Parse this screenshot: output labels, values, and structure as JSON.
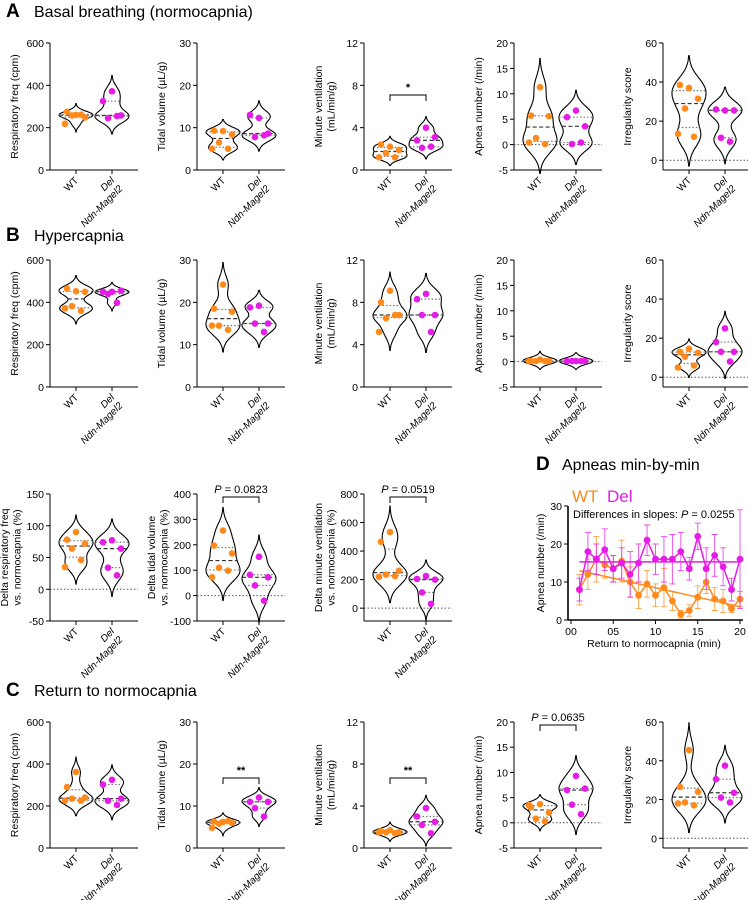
{
  "sections": [
    {
      "letter": "A",
      "title": "Basal breathing (normocapnia)"
    },
    {
      "letter": "B",
      "title": "Hypercapnia"
    },
    {
      "letter": "C",
      "title": "Return to normocapnia"
    },
    {
      "letter": "D",
      "title": "Apneas min-by-min"
    }
  ],
  "colors": {
    "WT": "#ff8a1c",
    "Del": "#e51ce5",
    "axis": "#000000"
  },
  "group_labels": [
    {
      "line1": "WT"
    },
    {
      "line1": "Del",
      "line2": "Ndn-Magel2"
    }
  ],
  "chart_data": [
    {
      "type": "violin",
      "section": "A",
      "ylabel": [
        "Respiratory freq (cpm)"
      ],
      "ylim": [
        0,
        600
      ],
      "yticks": [
        "0",
        "200",
        "400",
        "600"
      ],
      "series": [
        {
          "name": "WT",
          "values": [
            260,
            275,
            248,
            258,
            262,
            218
          ]
        },
        {
          "name": "Del",
          "values": [
            372,
            325,
            258,
            245,
            255
          ]
        }
      ]
    },
    {
      "type": "violin",
      "section": "A",
      "ylabel": [
        "Tidal volume (µL/g)"
      ],
      "ylim": [
        0,
        30
      ],
      "yticks": [
        "0",
        "10",
        "20",
        "30"
      ],
      "series": [
        {
          "name": "WT",
          "values": [
            9.2,
            9.3,
            8.4,
            6.5,
            5,
            5
          ]
        },
        {
          "name": "Del",
          "values": [
            12.3,
            13,
            8.6,
            7.8,
            8.2
          ]
        }
      ]
    },
    {
      "type": "violin",
      "section": "A",
      "ylabel": [
        "Minute ventilation",
        "(mL/min/g)"
      ],
      "ylim": [
        0,
        12
      ],
      "yticks": [
        "0",
        "4",
        "8",
        "12"
      ],
      "annotation": "*",
      "series": [
        {
          "name": "WT",
          "values": [
            2.2,
            2.4,
            1.9,
            1.6,
            1.2,
            1.2
          ]
        },
        {
          "name": "Del",
          "values": [
            4.0,
            2.8,
            3.1,
            2.1,
            2.2
          ]
        }
      ]
    },
    {
      "type": "violin",
      "section": "A",
      "ylabel": [
        "Apnea number (/min)"
      ],
      "ylim": [
        -5,
        20
      ],
      "yticks": [
        "-5",
        "0",
        "5",
        "10",
        "15",
        "20"
      ],
      "series": [
        {
          "name": "WT",
          "values": [
            11.3,
            5.7,
            5.6,
            1.3,
            0.1,
            0.4
          ]
        },
        {
          "name": "Del",
          "values": [
            6.7,
            5.4,
            3.6,
            0.1,
            0.4
          ]
        }
      ]
    },
    {
      "type": "violin",
      "section": "A",
      "ylabel": [
        "Irregularity score"
      ],
      "ylim": [
        -5,
        60
      ],
      "yticks": [
        "0",
        "20",
        "40",
        "60"
      ],
      "series": [
        {
          "name": "WT",
          "values": [
            37,
            38.5,
            31.5,
            26.5,
            12,
            13.5
          ]
        },
        {
          "name": "Del",
          "values": [
            25.5,
            26,
            25.5,
            11.5,
            9.5
          ]
        }
      ]
    },
    {
      "type": "violin",
      "section": "B",
      "ylabel": [
        "Respiratory freq (cpm)"
      ],
      "ylim": [
        0,
        600
      ],
      "yticks": [
        "0",
        "200",
        "400",
        "600"
      ],
      "series": [
        {
          "name": "WT",
          "values": [
            452,
            465,
            450,
            382,
            360,
            372
          ]
        },
        {
          "name": "Del",
          "values": [
            450,
            450,
            455,
            440,
            398
          ]
        }
      ]
    },
    {
      "type": "violin",
      "section": "B",
      "ylabel": [
        "Tidal volume (µL/g)"
      ],
      "ylim": [
        0,
        30
      ],
      "yticks": [
        "0",
        "10",
        "20",
        "30"
      ],
      "series": [
        {
          "name": "WT",
          "values": [
            24.2,
            18.5,
            17.8,
            14.5,
            13.5,
            14.5
          ]
        },
        {
          "name": "Del",
          "values": [
            19.2,
            18.8,
            15,
            15,
            13
          ]
        }
      ]
    },
    {
      "type": "violin",
      "section": "B",
      "ylabel": [
        "Minute ventilation",
        "(mL/min/g)"
      ],
      "ylim": [
        0,
        12
      ],
      "yticks": [
        "0",
        "4",
        "8",
        "12"
      ],
      "series": [
        {
          "name": "WT",
          "values": [
            9.1,
            8.0,
            6.8,
            6.5,
            6.8,
            5.2
          ]
        },
        {
          "name": "Del",
          "values": [
            8.8,
            8.3,
            6.8,
            6.8,
            5.2
          ]
        }
      ]
    },
    {
      "type": "violin",
      "section": "B",
      "ylabel": [
        "Apnea number (/min)"
      ],
      "ylim": [
        -5,
        20
      ],
      "yticks": [
        "-5",
        "0",
        "5",
        "10",
        "15",
        "20"
      ],
      "series": [
        {
          "name": "WT",
          "values": [
            0.4,
            0.1,
            0.1,
            0.1,
            0.1,
            0.1
          ]
        },
        {
          "name": "Del",
          "values": [
            0.1,
            0.1,
            0.1,
            0.1,
            0.1
          ]
        }
      ]
    },
    {
      "type": "violin",
      "section": "B",
      "ylabel": [
        "Irregularity score"
      ],
      "ylim": [
        -5,
        60
      ],
      "yticks": [
        "0",
        "20",
        "40",
        "60"
      ],
      "series": [
        {
          "name": "WT",
          "values": [
            14.5,
            13,
            12.5,
            10.5,
            6,
            5
          ]
        },
        {
          "name": "Del",
          "values": [
            25,
            18,
            13,
            13,
            8
          ]
        }
      ]
    },
    {
      "type": "violin",
      "section": "B",
      "ylabel": [
        "Delta respiratory freq",
        "vs. normocapnia (%)"
      ],
      "ylim": [
        -50,
        150
      ],
      "yticks": [
        "-50",
        "0",
        "50",
        "100",
        "150"
      ],
      "series": [
        {
          "name": "WT",
          "values": [
            90,
            78,
            72,
            64,
            46,
            35
          ]
        },
        {
          "name": "Del",
          "values": [
            77,
            74,
            64,
            34,
            22
          ]
        }
      ]
    },
    {
      "type": "violin",
      "section": "B",
      "ylabel": [
        "Delta tidal volume",
        "vs. normocapnia (%)"
      ],
      "ylim": [
        -100,
        400
      ],
      "yticks": [
        "-100",
        "0",
        "100",
        "200",
        "300",
        "400"
      ],
      "annotation": "P = 0.0823",
      "series": [
        {
          "name": "WT",
          "values": [
            256,
            197,
            166,
            110,
            98,
            72
          ]
        },
        {
          "name": "Del",
          "values": [
            153,
            82,
            72,
            40,
            -20
          ]
        }
      ]
    },
    {
      "type": "violin",
      "section": "B",
      "ylabel": [
        "Delta minute ventilation",
        "vs. normocapnia (%)"
      ],
      "ylim": [
        -90,
        800
      ],
      "yticks": [
        "0",
        "200",
        "400",
        "600",
        "800"
      ],
      "annotation": "P = 0.0519",
      "series": [
        {
          "name": "WT",
          "values": [
            533,
            465,
            262,
            235,
            225,
            220
          ]
        },
        {
          "name": "Del",
          "values": [
            225,
            205,
            200,
            110,
            30
          ]
        }
      ]
    },
    {
      "type": "violin",
      "section": "C",
      "ylabel": [
        "Respiratory freq (cpm)"
      ],
      "ylim": [
        0,
        600
      ],
      "yticks": [
        "0",
        "200",
        "400",
        "600"
      ],
      "series": [
        {
          "name": "WT",
          "values": [
            362,
            290,
            240,
            235,
            225,
            225
          ]
        },
        {
          "name": "Del",
          "values": [
            325,
            302,
            235,
            225,
            205
          ]
        }
      ]
    },
    {
      "type": "violin",
      "section": "C",
      "ylabel": [
        "Tidal volume (µL/g)"
      ],
      "ylim": [
        0,
        30
      ],
      "yticks": [
        "0",
        "10",
        "20",
        "30"
      ],
      "annotation": "**",
      "series": [
        {
          "name": "WT",
          "values": [
            6.2,
            6.3,
            6.0,
            5.8,
            6.4,
            4.8
          ]
        },
        {
          "name": "Del",
          "values": [
            12,
            11,
            11,
            9.5,
            7.5
          ]
        }
      ]
    },
    {
      "type": "violin",
      "section": "C",
      "ylabel": [
        "Minute ventilation",
        "(mL/min/g)"
      ],
      "ylim": [
        0,
        12
      ],
      "yticks": [
        "0",
        "4",
        "8",
        "12"
      ],
      "annotation": "**",
      "series": [
        {
          "name": "WT",
          "values": [
            1.7,
            1.6,
            1.5,
            1.5,
            1.4,
            1.5
          ]
        },
        {
          "name": "Del",
          "values": [
            3.8,
            3.0,
            2.5,
            2.2,
            1.4
          ]
        }
      ]
    },
    {
      "type": "violin",
      "section": "C",
      "ylabel": [
        "Apnea number (/min)"
      ],
      "ylim": [
        -5,
        20
      ],
      "yticks": [
        "-5",
        "0",
        "5",
        "10",
        "15",
        "20"
      ],
      "annotation": "P = 0.0635",
      "series": [
        {
          "name": "WT",
          "values": [
            3.7,
            3.1,
            2,
            0.8,
            0.3,
            3.5
          ]
        },
        {
          "name": "Del",
          "values": [
            9.3,
            6.5,
            6.8,
            3.6,
            1.7
          ]
        }
      ]
    },
    {
      "type": "violin",
      "section": "C",
      "ylabel": [
        "Irregularity score"
      ],
      "ylim": [
        -5,
        60
      ],
      "yticks": [
        "0",
        "20",
        "40",
        "60"
      ],
      "series": [
        {
          "name": "WT",
          "values": [
            45.5,
            26.5,
            24,
            18.5,
            17,
            18
          ]
        },
        {
          "name": "Del",
          "values": [
            37.5,
            30.5,
            23.5,
            21,
            18.5
          ]
        }
      ]
    },
    {
      "type": "line",
      "section": "D",
      "xlabel": "Return to normocapnia (min)",
      "ylabel": "Apnea number (/min)",
      "xlim": [
        0,
        20
      ],
      "ylim": [
        0,
        30
      ],
      "xticks": [
        "00",
        "05",
        "10",
        "15",
        "20"
      ],
      "yticks": [
        "0",
        "10",
        "20",
        "30"
      ],
      "legend": [
        "WT",
        "Del"
      ],
      "legend_position": "top-left",
      "annotation": "Differences in slopes: P = 0.0255",
      "x": [
        1,
        2,
        3,
        4,
        5,
        6,
        7,
        8,
        9,
        10,
        11,
        12,
        13,
        14,
        15,
        16,
        17,
        18,
        19,
        20
      ],
      "series": [
        {
          "name": "WT",
          "values": [
            8,
            12,
            16,
            14.5,
            13.5,
            15.5,
            10,
            6.5,
            9.5,
            6.5,
            8.5,
            5,
            1.5,
            2.5,
            6,
            10,
            5.5,
            5,
            3,
            5.5
          ],
          "error": [
            4,
            4,
            6,
            3.5,
            3.5,
            5.5,
            4,
            3.5,
            3.5,
            3,
            5,
            2.5,
            1,
            1.5,
            3,
            3,
            3,
            3,
            1,
            2
          ],
          "fit": {
            "intercept": 13.5,
            "slope": -0.5
          }
        },
        {
          "name": "Del",
          "values": [
            8,
            18,
            16,
            18.5,
            13.5,
            15,
            12,
            15,
            21,
            16,
            16,
            16,
            18,
            13.5,
            22,
            13.5,
            17,
            14,
            8,
            16
          ],
          "error": [
            3,
            5,
            4,
            5.5,
            3.5,
            4,
            6,
            5,
            4,
            4,
            6,
            6.5,
            5,
            3,
            3.5,
            5.5,
            5.5,
            5,
            3,
            13
          ],
          "fit": {
            "intercept": 15.3,
            "slope": 0
          }
        }
      ]
    }
  ]
}
